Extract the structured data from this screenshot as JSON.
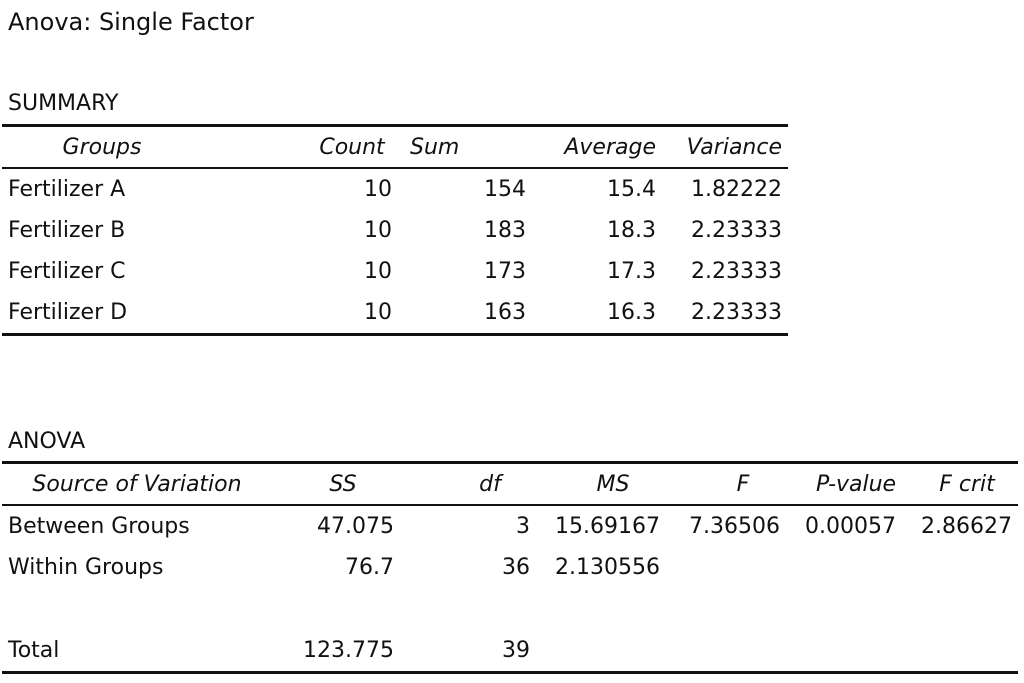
{
  "title": "Anova: Single Factor",
  "summary": {
    "label": "SUMMARY",
    "headers": [
      "Groups",
      "Count",
      "Sum",
      "Average",
      "Variance"
    ],
    "rows": [
      [
        "Fertilizer A",
        "10",
        "154",
        "15.4",
        "1.82222"
      ],
      [
        "Fertilizer B",
        "10",
        "183",
        "18.3",
        "2.23333"
      ],
      [
        "Fertilizer C",
        "10",
        "173",
        "17.3",
        "2.23333"
      ],
      [
        "Fertilizer D",
        "10",
        "163",
        "16.3",
        "2.23333"
      ]
    ]
  },
  "anova": {
    "label": "ANOVA",
    "headers": [
      "Source of Variation",
      "SS",
      "df",
      "MS",
      "F",
      "P-value",
      "F crit"
    ],
    "rows": [
      [
        "Between Groups",
        "47.075",
        "3",
        "15.69167",
        "7.36506",
        "0.00057",
        "2.86627"
      ],
      [
        "Within Groups",
        "76.7",
        "36",
        "2.130556",
        "",
        "",
        ""
      ],
      [
        "",
        "",
        "",
        "",
        "",
        "",
        ""
      ],
      [
        "Total",
        "123.775",
        "39",
        "",
        "",
        "",
        ""
      ]
    ]
  }
}
